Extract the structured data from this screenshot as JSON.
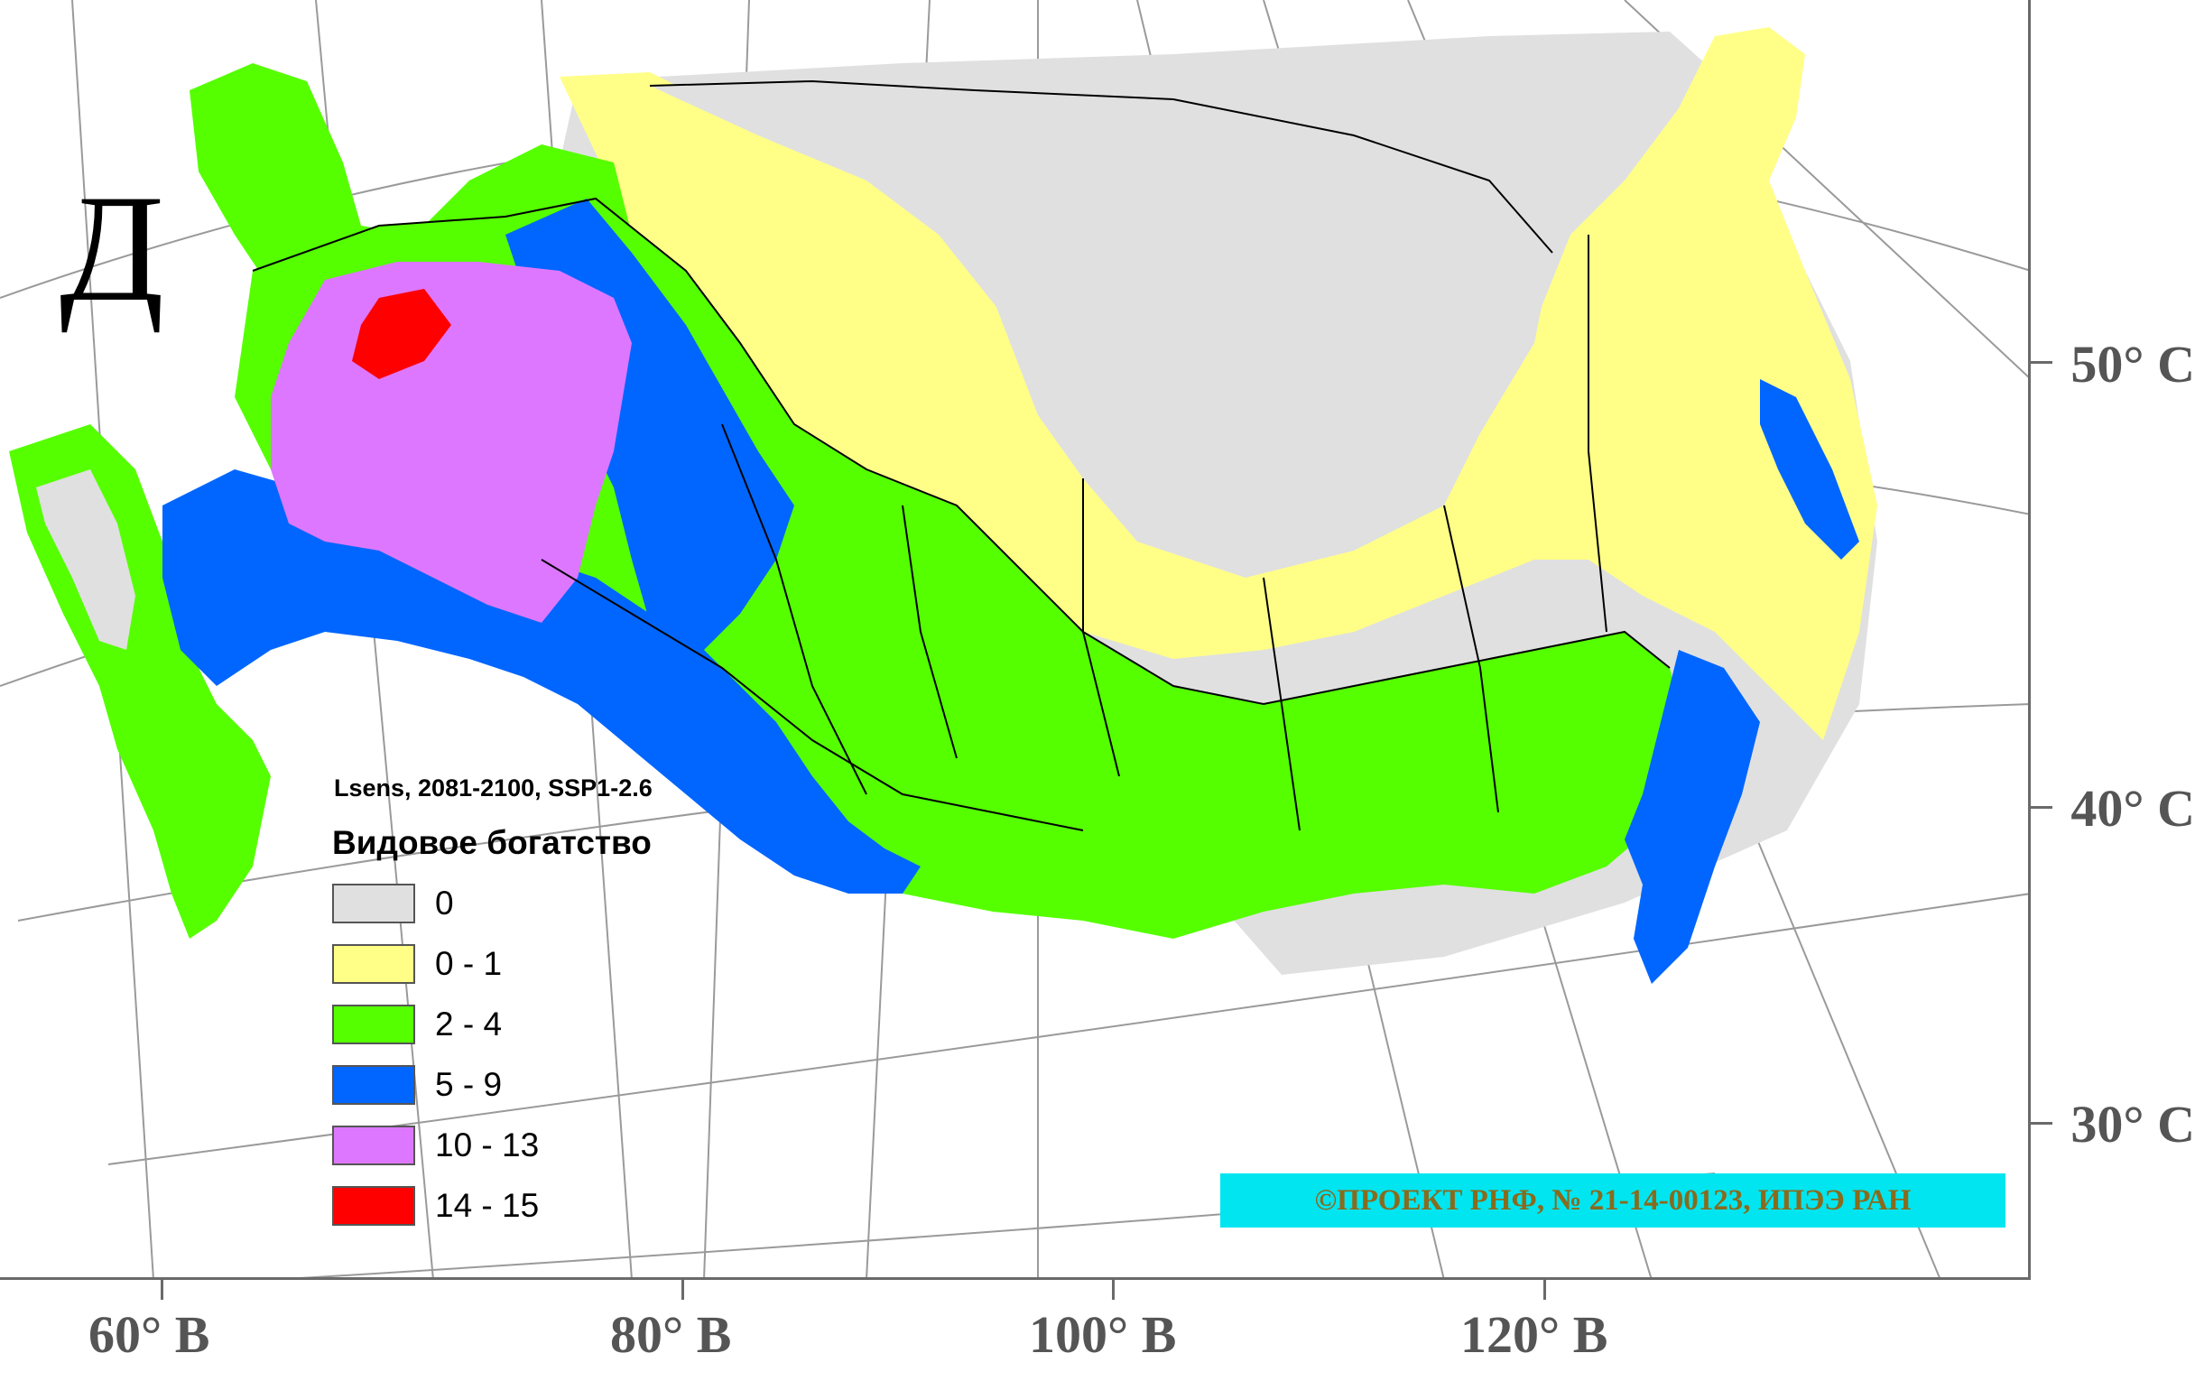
{
  "panel_letter": "Д",
  "map_subtitle": "Lsens, 2081-2100, SSP1-2.6",
  "legend": {
    "title": "Видовое богатство",
    "items": [
      {
        "label": "0",
        "color": "#e0e0e0"
      },
      {
        "label": "0 - 1",
        "color": "#ffff88"
      },
      {
        "label": "2 - 4",
        "color": "#55ff00"
      },
      {
        "label": "5 - 9",
        "color": "#0066ff"
      },
      {
        "label": "10 - 13",
        "color": "#dd77ff"
      },
      {
        "label": "14 - 15",
        "color": "#ff0000"
      }
    ]
  },
  "latitude_labels": [
    "50° С",
    "40° С",
    "30° С"
  ],
  "longitude_labels": [
    "60° В",
    "80° В",
    "100° В",
    "120° В"
  ],
  "credit": "©ПРОЕКТ РНФ, № 21-14-00123, ИПЭЭ РАН"
}
